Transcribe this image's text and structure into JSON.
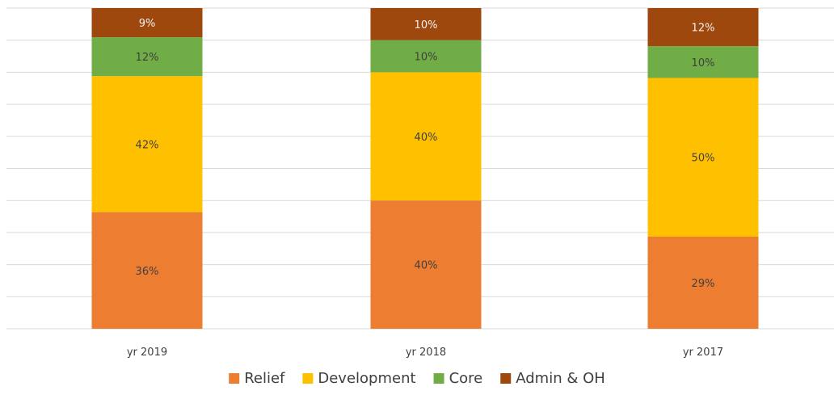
{
  "chart_data": {
    "type": "bar",
    "stacked": true,
    "normalized": true,
    "categories": [
      "yr 2019",
      "yr 2018",
      "yr 2017"
    ],
    "series": [
      {
        "name": "Relief",
        "values": [
          36,
          40,
          29
        ],
        "labels": [
          "36%",
          "40%",
          "29%"
        ],
        "color": "#ed7d31"
      },
      {
        "name": "Development",
        "values": [
          42,
          40,
          50
        ],
        "labels": [
          "42%",
          "40%",
          "50%"
        ],
        "color": "#ffc000"
      },
      {
        "name": "Core",
        "values": [
          12,
          10,
          10
        ],
        "labels": [
          "12%",
          "10%",
          "10%"
        ],
        "color": "#70ad47"
      },
      {
        "name": "Admin & OH",
        "values": [
          9,
          10,
          12
        ],
        "labels": [
          "9%",
          "10%",
          "12%"
        ],
        "color": "#9e480e"
      }
    ],
    "ylim": [
      0,
      100
    ],
    "grid": true,
    "legend_position": "bottom"
  }
}
